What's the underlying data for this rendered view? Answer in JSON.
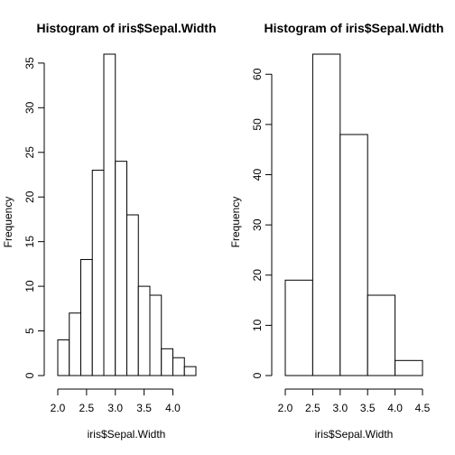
{
  "chart_data": [
    {
      "type": "bar",
      "title": "Histogram of iris$Sepal.Width",
      "xlabel": "iris$Sepal.Width",
      "ylabel": "Frequency",
      "bins": [
        {
          "x0": 2.0,
          "x1": 2.2,
          "count": 4
        },
        {
          "x0": 2.2,
          "x1": 2.4,
          "count": 7
        },
        {
          "x0": 2.4,
          "x1": 2.6,
          "count": 13
        },
        {
          "x0": 2.6,
          "x1": 2.8,
          "count": 23
        },
        {
          "x0": 2.8,
          "x1": 3.0,
          "count": 36
        },
        {
          "x0": 3.0,
          "x1": 3.2,
          "count": 24
        },
        {
          "x0": 3.2,
          "x1": 3.4,
          "count": 18
        },
        {
          "x0": 3.4,
          "x1": 3.6,
          "count": 10
        },
        {
          "x0": 3.6,
          "x1": 3.8,
          "count": 9
        },
        {
          "x0": 3.8,
          "x1": 4.0,
          "count": 3
        },
        {
          "x0": 4.0,
          "x1": 4.2,
          "count": 2
        },
        {
          "x0": 4.2,
          "x1": 4.4,
          "count": 1
        }
      ],
      "xticks": [
        2.0,
        2.5,
        3.0,
        3.5,
        4.0
      ],
      "xtick_labels": [
        "2.0",
        "2.5",
        "3.0",
        "3.5",
        "4.0"
      ],
      "yticks": [
        0,
        5,
        10,
        15,
        20,
        25,
        30,
        35
      ],
      "ytick_labels": [
        "0",
        "5",
        "10",
        "15",
        "20",
        "25",
        "30",
        "35"
      ],
      "xlim": [
        2.0,
        4.4
      ],
      "ylim": [
        0,
        36
      ],
      "grid": false,
      "legend": "none"
    },
    {
      "type": "bar",
      "title": "Histogram of iris$Sepal.Width",
      "xlabel": "iris$Sepal.Width",
      "ylabel": "Frequency",
      "bins": [
        {
          "x0": 2.0,
          "x1": 2.5,
          "count": 19
        },
        {
          "x0": 2.5,
          "x1": 3.0,
          "count": 64
        },
        {
          "x0": 3.0,
          "x1": 3.5,
          "count": 48
        },
        {
          "x0": 3.5,
          "x1": 4.0,
          "count": 16
        },
        {
          "x0": 4.0,
          "x1": 4.5,
          "count": 3
        }
      ],
      "xticks": [
        2.0,
        2.5,
        3.0,
        3.5,
        4.0,
        4.5
      ],
      "xtick_labels": [
        "2.0",
        "2.5",
        "3.0",
        "3.5",
        "4.0",
        "4.5"
      ],
      "yticks": [
        0,
        10,
        20,
        30,
        40,
        50,
        60
      ],
      "ytick_labels": [
        "0",
        "10",
        "20",
        "30",
        "40",
        "50",
        "60"
      ],
      "xlim": [
        2.0,
        4.5
      ],
      "ylim": [
        0,
        64
      ],
      "grid": false,
      "legend": "none"
    }
  ]
}
